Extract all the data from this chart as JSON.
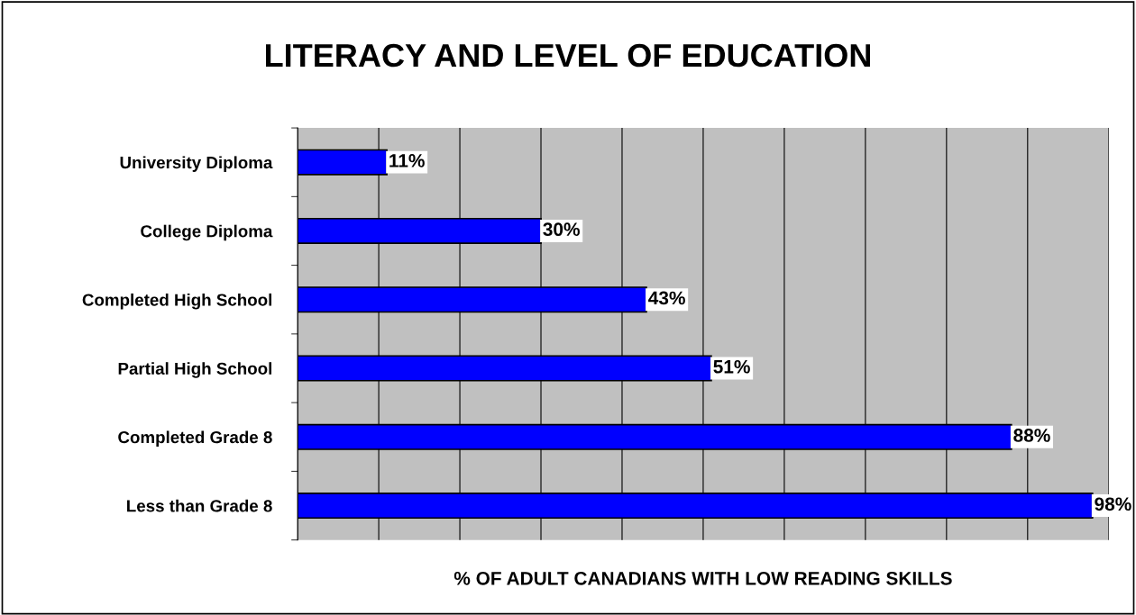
{
  "chart_data": {
    "type": "bar",
    "orientation": "horizontal",
    "title": "LITERACY AND LEVEL OF EDUCATION",
    "xlabel": "% OF ADULT CANADIANS WITH LOW READING SKILLS",
    "categories": [
      "University Diploma",
      "College Diploma",
      "Completed High School",
      "Partial High School",
      "Completed Grade 8",
      "Less than Grade 8"
    ],
    "values": [
      11,
      30,
      43,
      51,
      88,
      98
    ],
    "value_labels": [
      "11%",
      "30%",
      "43%",
      "51%",
      "88%",
      "98%"
    ],
    "color": "#0000ff",
    "xlim": [
      0,
      100
    ],
    "xticks": [
      {
        "value": 0,
        "label": null
      },
      {
        "value": 10,
        "label": null
      },
      {
        "value": 20,
        "label": null
      },
      {
        "value": 30,
        "label": null
      },
      {
        "value": 40,
        "label": null
      },
      {
        "value": 50,
        "label": null
      },
      {
        "value": 60,
        "label": null
      },
      {
        "value": 70,
        "label": null
      },
      {
        "value": 80,
        "label": null
      },
      {
        "value": 90,
        "label": null
      },
      {
        "value": 100,
        "label": null
      }
    ],
    "tick_labels": "y",
    "grid": "x"
  }
}
